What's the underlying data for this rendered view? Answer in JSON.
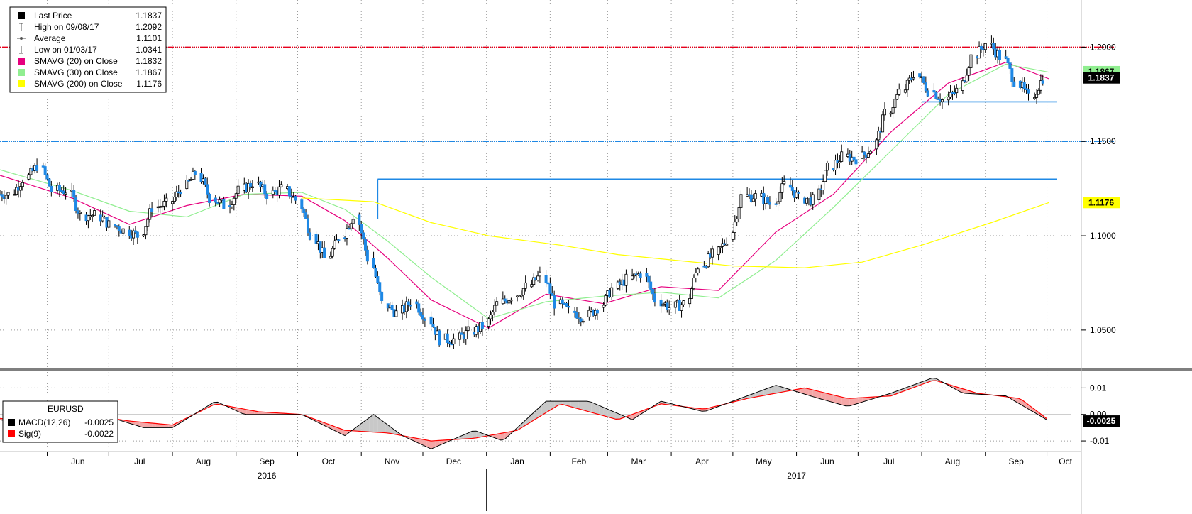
{
  "chart_data": [
    {
      "type": "candlestick",
      "title": "",
      "instrument": "EURUSD",
      "x_range": [
        "2016-05-09",
        "2017-10-06"
      ],
      "ylim": [
        1.03,
        1.225
      ],
      "yticks": [
        1.05,
        1.1,
        1.15,
        1.2
      ],
      "ytick_labels": [
        "1.0500",
        "1.1000",
        "1.1500",
        "1.2000"
      ],
      "grid": true,
      "legend": {
        "placement": "top-left",
        "entries": [
          {
            "label": "Last Price",
            "value": "1.1837",
            "marker": "square",
            "color": "#000000"
          },
          {
            "label": "High on 09/08/17",
            "value": "1.2092",
            "marker": "high"
          },
          {
            "label": "Average",
            "value": "1.1101",
            "marker": "average"
          },
          {
            "label": "Low on 01/03/17",
            "value": "1.0341",
            "marker": "low"
          },
          {
            "label": "SMAVG (20) on Close",
            "value": "1.1832",
            "marker": "square",
            "color": "#e6007e"
          },
          {
            "label": "SMAVG (30) on Close",
            "value": "1.1867",
            "marker": "square",
            "color": "#90ee90"
          },
          {
            "label": "SMAVG (200) on Close",
            "value": "1.1176",
            "marker": "square",
            "color": "#ffff00"
          }
        ]
      },
      "horizontal_lines": [
        {
          "value": 1.2,
          "color": "#e8001c",
          "style": "dotted"
        },
        {
          "value": 1.15,
          "color": "#1e88e5",
          "style": "dotted"
        }
      ],
      "segments": [
        {
          "from": "2016-11-09",
          "to": "2017-10-06",
          "value": 1.13,
          "color": "#1e88e5"
        },
        {
          "from": "2017-08-01",
          "to": "2017-10-06",
          "value": 1.171,
          "color": "#1e88e5"
        }
      ],
      "last_value_tags": [
        {
          "label": "1.1867",
          "value": 1.187,
          "bg": "#90ee90",
          "fg": "#000000"
        },
        {
          "label": "1.1837",
          "value": 1.1837,
          "bg": "#000000",
          "fg": "#ffffff"
        },
        {
          "label": "1.1176",
          "value": 1.1176,
          "bg": "#ffff00",
          "fg": "#000000"
        }
      ],
      "series": [
        {
          "name": "EURUSD",
          "kind": "candles",
          "weekly_close": {
            "dates": [
              "2016-05-09",
              "2016-05-16",
              "2016-05-23",
              "2016-05-30",
              "2016-06-06",
              "2016-06-13",
              "2016-06-20",
              "2016-06-27",
              "2016-07-04",
              "2016-07-11",
              "2016-07-18",
              "2016-07-25",
              "2016-08-01",
              "2016-08-08",
              "2016-08-15",
              "2016-08-22",
              "2016-08-29",
              "2016-09-05",
              "2016-09-12",
              "2016-09-19",
              "2016-09-26",
              "2016-10-03",
              "2016-10-10",
              "2016-10-17",
              "2016-10-24",
              "2016-10-31",
              "2016-11-07",
              "2016-11-14",
              "2016-11-21",
              "2016-11-28",
              "2016-12-05",
              "2016-12-12",
              "2016-12-19",
              "2016-12-26",
              "2017-01-02",
              "2017-01-09",
              "2017-01-16",
              "2017-01-23",
              "2017-01-30",
              "2017-02-06",
              "2017-02-13",
              "2017-02-20",
              "2017-02-27",
              "2017-03-06",
              "2017-03-13",
              "2017-03-20",
              "2017-03-27",
              "2017-04-03",
              "2017-04-10",
              "2017-04-17",
              "2017-04-24",
              "2017-05-01",
              "2017-05-08",
              "2017-05-15",
              "2017-05-22",
              "2017-05-29",
              "2017-06-05",
              "2017-06-12",
              "2017-06-19",
              "2017-06-26",
              "2017-07-03",
              "2017-07-10",
              "2017-07-17",
              "2017-07-24",
              "2017-07-31",
              "2017-08-07",
              "2017-08-14",
              "2017-08-21",
              "2017-08-28",
              "2017-09-04",
              "2017-09-11",
              "2017-09-18",
              "2017-09-25",
              "2017-10-02"
            ],
            "values": [
              1.122,
              1.122,
              1.13,
              1.137,
              1.124,
              1.124,
              1.111,
              1.111,
              1.106,
              1.103,
              1.1,
              1.115,
              1.117,
              1.125,
              1.133,
              1.12,
              1.116,
              1.124,
              1.128,
              1.122,
              1.125,
              1.119,
              1.101,
              1.088,
              1.099,
              1.111,
              1.088,
              1.064,
              1.059,
              1.065,
              1.057,
              1.045,
              1.045,
              1.049,
              1.052,
              1.064,
              1.068,
              1.073,
              1.079,
              1.064,
              1.06,
              1.057,
              1.062,
              1.072,
              1.077,
              1.08,
              1.066,
              1.062,
              1.064,
              1.084,
              1.09,
              1.098,
              1.121,
              1.121,
              1.117,
              1.127,
              1.12,
              1.119,
              1.136,
              1.142,
              1.141,
              1.146,
              1.165,
              1.176,
              1.186,
              1.177,
              1.172,
              1.177,
              1.195,
              1.202,
              1.195,
              1.182,
              1.173,
              1.1837
            ]
          }
        },
        {
          "name": "SMAVG (20) on Close",
          "kind": "line",
          "color": "#e6007e",
          "dates": [
            "2016-05-09",
            "2016-06-13",
            "2016-07-11",
            "2016-08-08",
            "2016-09-05",
            "2016-10-03",
            "2016-10-24",
            "2016-11-14",
            "2016-12-05",
            "2017-01-02",
            "2017-01-30",
            "2017-02-27",
            "2017-03-27",
            "2017-04-24",
            "2017-05-22",
            "2017-06-19",
            "2017-07-17",
            "2017-08-14",
            "2017-09-11",
            "2017-10-02"
          ],
          "values": [
            1.132,
            1.12,
            1.106,
            1.116,
            1.122,
            1.121,
            1.108,
            1.088,
            1.066,
            1.051,
            1.069,
            1.064,
            1.073,
            1.071,
            1.102,
            1.122,
            1.155,
            1.181,
            1.192,
            1.1832
          ]
        },
        {
          "name": "SMAVG (30) on Close",
          "kind": "line",
          "color": "#90ee90",
          "dates": [
            "2016-05-09",
            "2016-06-13",
            "2016-07-11",
            "2016-08-08",
            "2016-09-05",
            "2016-10-03",
            "2016-10-24",
            "2016-11-14",
            "2016-12-05",
            "2017-01-02",
            "2017-01-30",
            "2017-02-27",
            "2017-03-27",
            "2017-04-24",
            "2017-05-22",
            "2017-06-19",
            "2017-07-17",
            "2017-08-14",
            "2017-09-11",
            "2017-10-02"
          ],
          "values": [
            1.135,
            1.124,
            1.113,
            1.11,
            1.122,
            1.123,
            1.114,
            1.097,
            1.078,
            1.056,
            1.065,
            1.068,
            1.07,
            1.067,
            1.087,
            1.115,
            1.145,
            1.175,
            1.191,
            1.1867
          ]
        },
        {
          "name": "SMAVG (200) on Close",
          "kind": "line",
          "color": "#ffff00",
          "dates": [
            "2016-10-03",
            "2016-11-07",
            "2016-12-05",
            "2017-01-02",
            "2017-02-06",
            "2017-03-06",
            "2017-04-03",
            "2017-05-01",
            "2017-06-05",
            "2017-07-03",
            "2017-08-01",
            "2017-09-04",
            "2017-10-02"
          ],
          "values": [
            1.12,
            1.118,
            1.107,
            1.1,
            1.095,
            1.09,
            1.087,
            1.084,
            1.083,
            1.086,
            1.095,
            1.107,
            1.1176
          ]
        }
      ]
    },
    {
      "type": "line",
      "title": "",
      "ylim": [
        -0.014,
        0.016
      ],
      "yticks": [
        0.01,
        0.0,
        -0.01
      ],
      "ytick_labels": [
        "0.01",
        "0.00",
        "-0.01"
      ],
      "legend": {
        "placement": "top-left",
        "title": "EURUSD",
        "entries": [
          {
            "label": "MACD(12,26)",
            "value": "-0.0025",
            "color": "#000000"
          },
          {
            "label": "Sig(9)",
            "value": "-0.0022",
            "color": "#ff0000"
          }
        ]
      },
      "last_value_tag": {
        "label": "-0.0025",
        "value": -0.0025,
        "bg": "#000000",
        "fg": "#ffffff"
      },
      "series": [
        {
          "name": "MACD(12,26)",
          "color": "#000000",
          "dates": [
            "2016-05-09",
            "2016-05-30",
            "2016-06-13",
            "2016-06-27",
            "2016-07-18",
            "2016-08-01",
            "2016-08-22",
            "2016-09-05",
            "2016-10-03",
            "2016-10-24",
            "2016-11-07",
            "2016-11-21",
            "2016-12-05",
            "2016-12-26",
            "2017-01-09",
            "2017-01-30",
            "2017-02-20",
            "2017-03-13",
            "2017-03-27",
            "2017-04-17",
            "2017-05-01",
            "2017-05-22",
            "2017-06-12",
            "2017-06-26",
            "2017-07-17",
            "2017-08-07",
            "2017-08-21",
            "2017-09-11",
            "2017-10-02"
          ],
          "values": [
            -0.002,
            -0.005,
            0.0,
            0.0,
            -0.005,
            -0.005,
            0.005,
            0.0,
            0.0,
            -0.008,
            0.0,
            -0.008,
            -0.013,
            -0.006,
            -0.01,
            0.005,
            0.005,
            -0.002,
            0.005,
            0.001,
            0.005,
            0.011,
            0.006,
            0.003,
            0.008,
            0.014,
            0.008,
            0.007,
            -0.0025
          ]
        },
        {
          "name": "Sig(9)",
          "color": "#ff0000",
          "dates": [
            "2016-05-09",
            "2016-05-30",
            "2016-06-20",
            "2016-07-11",
            "2016-08-01",
            "2016-08-22",
            "2016-09-12",
            "2016-10-03",
            "2016-10-24",
            "2016-11-14",
            "2016-12-05",
            "2016-12-26",
            "2017-01-16",
            "2017-02-06",
            "2017-03-06",
            "2017-03-27",
            "2017-04-17",
            "2017-05-08",
            "2017-06-05",
            "2017-06-26",
            "2017-07-17",
            "2017-08-07",
            "2017-08-28",
            "2017-09-18",
            "2017-10-02"
          ],
          "values": [
            -0.0015,
            -0.0035,
            0.0,
            -0.0025,
            -0.004,
            0.004,
            0.001,
            0.0,
            -0.006,
            -0.007,
            -0.01,
            -0.009,
            -0.006,
            0.004,
            -0.002,
            0.004,
            0.002,
            0.006,
            0.01,
            0.006,
            0.007,
            0.013,
            0.008,
            0.006,
            -0.0022
          ]
        }
      ]
    }
  ],
  "x_axis": {
    "month_labels": [
      {
        "label": "Jun",
        "date": "2016-06-16"
      },
      {
        "label": "Jul",
        "date": "2016-07-16"
      },
      {
        "label": "Aug",
        "date": "2016-08-16"
      },
      {
        "label": "Sep",
        "date": "2016-09-16"
      },
      {
        "label": "Oct",
        "date": "2016-10-16"
      },
      {
        "label": "Nov",
        "date": "2016-11-16"
      },
      {
        "label": "Dec",
        "date": "2016-12-16"
      },
      {
        "label": "Jan",
        "date": "2017-01-16"
      },
      {
        "label": "Feb",
        "date": "2017-02-15"
      },
      {
        "label": "Mar",
        "date": "2017-03-16"
      },
      {
        "label": "Apr",
        "date": "2017-04-16"
      },
      {
        "label": "May",
        "date": "2017-05-16"
      },
      {
        "label": "Jun",
        "date": "2017-06-16"
      },
      {
        "label": "Jul",
        "date": "2017-07-16"
      },
      {
        "label": "Aug",
        "date": "2017-08-16"
      },
      {
        "label": "Sep",
        "date": "2017-09-16"
      },
      {
        "label": "Oct",
        "date": "2017-10-10"
      }
    ],
    "year_labels": [
      {
        "label": "2016",
        "date": "2016-09-16"
      },
      {
        "label": "2017",
        "date": "2017-06-01"
      }
    ],
    "month_starts": [
      "2016-06-01",
      "2016-07-01",
      "2016-08-01",
      "2016-09-01",
      "2016-10-01",
      "2016-11-01",
      "2016-12-01",
      "2017-01-01",
      "2017-02-01",
      "2017-03-01",
      "2017-04-01",
      "2017-05-01",
      "2017-06-01",
      "2017-07-01",
      "2017-08-01",
      "2017-09-01",
      "2017-10-01"
    ]
  }
}
